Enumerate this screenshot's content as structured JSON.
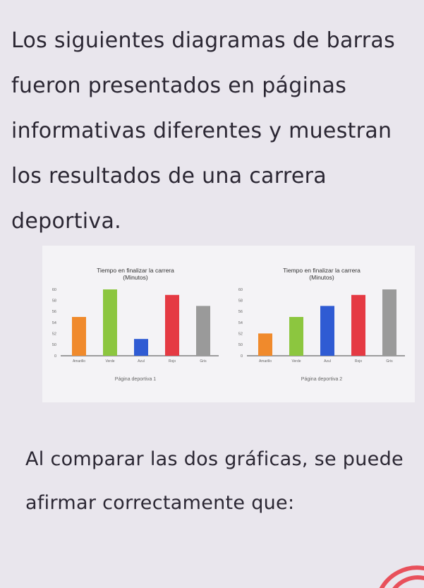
{
  "intro_text": "Los siguientes diagramas de barras fueron presentados en páginas informativas diferentes y muestran los resultados de una carrera deportiva.",
  "question_text": "Al comparar las dos gráficas, se puede afirmar correctamente que:",
  "chart_data": [
    {
      "type": "bar",
      "title": "Tiempo en finalizar la carrera",
      "subtitle": "(Minutos)",
      "caption": "Página deportiva 1",
      "categories": [
        "Amarillo",
        "Verde",
        "Azul",
        "Rojo",
        "Gris"
      ],
      "values": [
        55,
        60,
        51,
        59,
        57
      ],
      "colors": [
        "#f08a2c",
        "#8cc63f",
        "#2f5bd3",
        "#e53a43",
        "#9a9a9a"
      ],
      "yticks": [
        "60",
        "58",
        "56",
        "54",
        "52",
        "50",
        "0"
      ],
      "ylim": [
        0,
        60
      ],
      "axis_break": true,
      "grid": false
    },
    {
      "type": "bar",
      "title": "Tiempo en finalizar la carrera",
      "subtitle": "(Minutos)",
      "caption": "Página deportiva 2",
      "categories": [
        "Amarillo",
        "Verde",
        "Azul",
        "Rojo",
        "Gris"
      ],
      "values": [
        52,
        55,
        57,
        59,
        60
      ],
      "colors": [
        "#f08a2c",
        "#8cc63f",
        "#2f5bd3",
        "#e53a43",
        "#9a9a9a"
      ],
      "yticks": [
        "60",
        "58",
        "56",
        "54",
        "52",
        "50",
        "0"
      ],
      "ylim": [
        0,
        60
      ],
      "axis_break": true,
      "grid": false
    }
  ],
  "logo_color": "#e8505b"
}
